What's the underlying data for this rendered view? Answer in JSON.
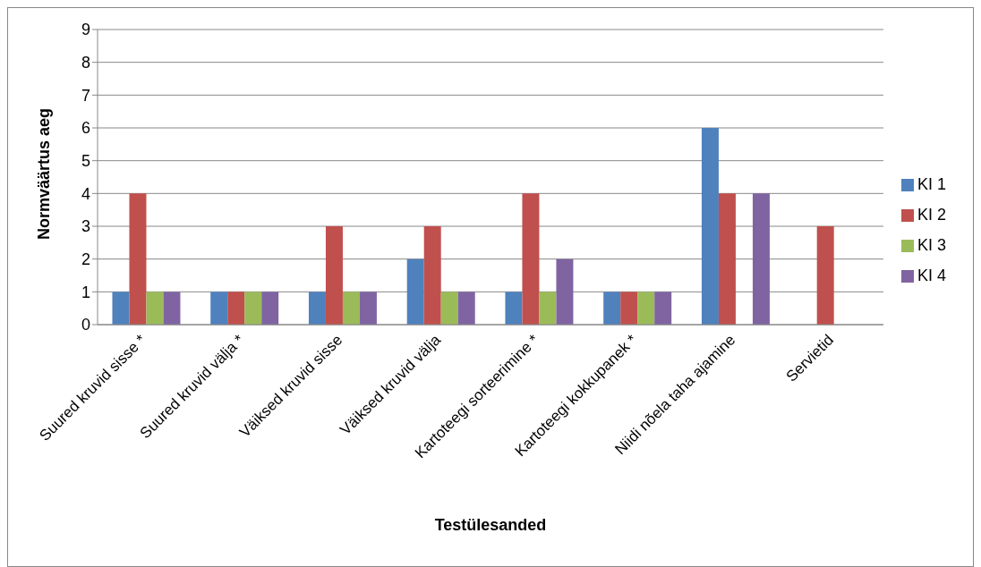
{
  "chart_data": {
    "type": "bar",
    "xlabel": "Testülesanded",
    "ylabel": "Normväärtus aeg",
    "categories": [
      "Suured kruvid sisse *",
      "Suured kruvid välja *",
      "Väiksed kruvid sisse",
      "Väiksed kruvid välja",
      "Kartoteegi sorteerimine *",
      "Kartoteegi kokkupanek *",
      "Niidi nõela taha ajamine",
      "Servietid"
    ],
    "series": [
      {
        "name": "KI 1",
        "color": "#4f81bd",
        "values": [
          1,
          1,
          1,
          2,
          1,
          1,
          6,
          null
        ]
      },
      {
        "name": "KI 2",
        "color": "#c0504d",
        "values": [
          4,
          1,
          3,
          3,
          4,
          1,
          4,
          3
        ]
      },
      {
        "name": "KI 3",
        "color": "#9bbb59",
        "values": [
          1,
          1,
          1,
          1,
          1,
          1,
          null,
          null
        ]
      },
      {
        "name": "KI 4",
        "color": "#8064a2",
        "values": [
          1,
          1,
          1,
          1,
          2,
          1,
          4,
          null
        ]
      }
    ],
    "ylim": [
      0,
      9
    ],
    "yticks": [
      0,
      1,
      2,
      3,
      4,
      5,
      6,
      7,
      8,
      9
    ],
    "grid": "y",
    "legend": "right"
  }
}
